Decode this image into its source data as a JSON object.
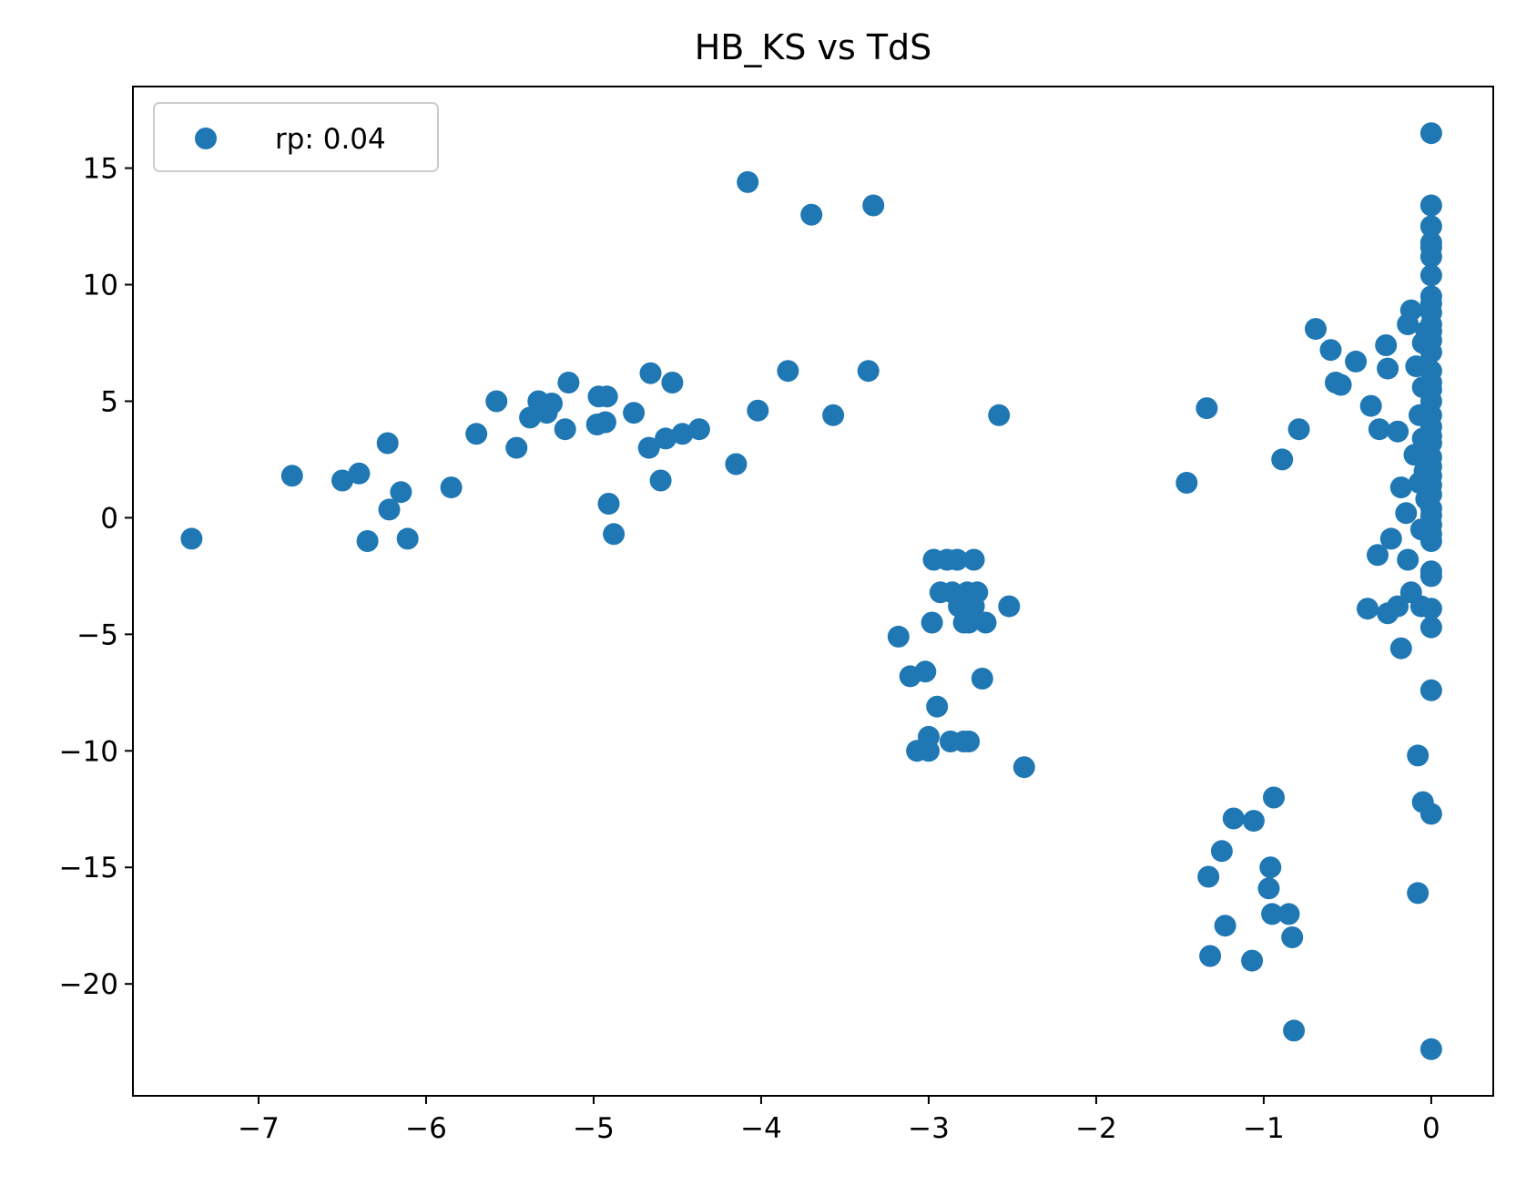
{
  "chart_data": {
    "type": "scatter",
    "title": "HB_KS vs TdS",
    "xlabel": "",
    "ylabel": "",
    "xlim": [
      -7.75,
      0.37
    ],
    "ylim": [
      -24.8,
      18.5
    ],
    "x_ticks": [
      -7,
      -6,
      -5,
      -4,
      -3,
      -2,
      -1,
      0
    ],
    "y_ticks": [
      -20,
      -15,
      -10,
      -5,
      0,
      5,
      10,
      15
    ],
    "x_tick_labels": [
      "−7",
      "−6",
      "−5",
      "−4",
      "−3",
      "−2",
      "−1",
      "0"
    ],
    "y_tick_labels": [
      "−20",
      "−15",
      "−10",
      "−5",
      "0",
      "5",
      "10",
      "15"
    ],
    "grid": false,
    "legend_position": "upper-left",
    "series": [
      {
        "name": "rp: 0.04",
        "color": "#1f77b4",
        "points": [
          [
            -7.4,
            -0.9
          ],
          [
            -6.8,
            1.8
          ],
          [
            -6.5,
            1.6
          ],
          [
            -6.4,
            1.9
          ],
          [
            -6.35,
            -1.0
          ],
          [
            -6.23,
            3.2
          ],
          [
            -6.22,
            0.35
          ],
          [
            -6.15,
            1.1
          ],
          [
            -6.11,
            -0.9
          ],
          [
            -5.85,
            1.3
          ],
          [
            -5.7,
            3.6
          ],
          [
            -5.58,
            5.0
          ],
          [
            -5.46,
            3.0
          ],
          [
            -5.38,
            4.3
          ],
          [
            -5.33,
            5.0
          ],
          [
            -5.28,
            4.5
          ],
          [
            -5.25,
            4.9
          ],
          [
            -5.17,
            3.8
          ],
          [
            -5.15,
            5.8
          ],
          [
            -4.98,
            4.0
          ],
          [
            -4.97,
            5.2
          ],
          [
            -4.93,
            4.1
          ],
          [
            -4.92,
            5.2
          ],
          [
            -4.91,
            0.6
          ],
          [
            -4.88,
            -0.7
          ],
          [
            -4.76,
            4.5
          ],
          [
            -4.67,
            3.0
          ],
          [
            -4.66,
            6.2
          ],
          [
            -4.6,
            1.6
          ],
          [
            -4.57,
            3.4
          ],
          [
            -4.53,
            5.8
          ],
          [
            -4.47,
            3.6
          ],
          [
            -4.37,
            3.8
          ],
          [
            -4.15,
            2.3
          ],
          [
            -4.08,
            14.4
          ],
          [
            -4.02,
            4.6
          ],
          [
            -3.84,
            6.3
          ],
          [
            -3.7,
            13.0
          ],
          [
            -3.57,
            4.4
          ],
          [
            -3.36,
            6.3
          ],
          [
            -3.33,
            13.4
          ],
          [
            -3.18,
            -5.1
          ],
          [
            -3.11,
            -6.8
          ],
          [
            -3.07,
            -10.0
          ],
          [
            -3.02,
            -6.6
          ],
          [
            -3.0,
            -9.4
          ],
          [
            -3.0,
            -10.0
          ],
          [
            -2.98,
            -4.5
          ],
          [
            -2.97,
            -1.8
          ],
          [
            -2.95,
            -8.1
          ],
          [
            -2.93,
            -3.2
          ],
          [
            -2.89,
            -1.8
          ],
          [
            -2.87,
            -9.6
          ],
          [
            -2.86,
            -3.2
          ],
          [
            -2.83,
            -1.8
          ],
          [
            -2.82,
            -3.8
          ],
          [
            -2.79,
            -4.5
          ],
          [
            -2.79,
            -9.6
          ],
          [
            -2.77,
            -3.2
          ],
          [
            -2.76,
            -9.6
          ],
          [
            -2.76,
            -4.5
          ],
          [
            -2.73,
            -3.8
          ],
          [
            -2.73,
            -1.8
          ],
          [
            -2.71,
            -3.2
          ],
          [
            -2.68,
            -6.9
          ],
          [
            -2.66,
            -4.5
          ],
          [
            -2.58,
            4.4
          ],
          [
            -2.52,
            -3.8
          ],
          [
            -2.43,
            -10.7
          ],
          [
            -1.46,
            1.5
          ],
          [
            -1.34,
            4.7
          ],
          [
            -1.33,
            -15.4
          ],
          [
            -1.32,
            -18.8
          ],
          [
            -1.25,
            -14.3
          ],
          [
            -1.23,
            -17.5
          ],
          [
            -1.18,
            -12.9
          ],
          [
            -1.07,
            -19.0
          ],
          [
            -1.06,
            -13.0
          ],
          [
            -0.97,
            -15.9
          ],
          [
            -0.96,
            -15.0
          ],
          [
            -0.95,
            -17.0
          ],
          [
            -0.94,
            -12.0
          ],
          [
            -0.89,
            2.5
          ],
          [
            -0.85,
            -17.0
          ],
          [
            -0.83,
            -18.0
          ],
          [
            -0.82,
            -22.0
          ],
          [
            -0.79,
            3.8
          ],
          [
            -0.69,
            8.1
          ],
          [
            -0.6,
            7.2
          ],
          [
            -0.57,
            5.8
          ],
          [
            -0.54,
            5.7
          ],
          [
            -0.45,
            6.7
          ],
          [
            -0.38,
            -3.9
          ],
          [
            -0.36,
            4.8
          ],
          [
            -0.32,
            -1.6
          ],
          [
            -0.31,
            3.8
          ],
          [
            -0.27,
            7.4
          ],
          [
            -0.26,
            6.4
          ],
          [
            -0.26,
            -4.1
          ],
          [
            -0.24,
            -0.9
          ],
          [
            -0.2,
            -3.8
          ],
          [
            -0.2,
            3.7
          ],
          [
            -0.18,
            -5.6
          ],
          [
            -0.18,
            1.3
          ],
          [
            -0.15,
            0.2
          ],
          [
            -0.14,
            -1.8
          ],
          [
            -0.14,
            8.3
          ],
          [
            -0.12,
            8.9
          ],
          [
            -0.12,
            -3.2
          ],
          [
            -0.1,
            2.7
          ],
          [
            -0.09,
            6.5
          ],
          [
            -0.08,
            -10.2
          ],
          [
            -0.08,
            -16.1
          ],
          [
            -0.07,
            1.5
          ],
          [
            -0.07,
            4.4
          ],
          [
            -0.06,
            -0.5
          ],
          [
            -0.06,
            -3.8
          ],
          [
            -0.05,
            -12.2
          ],
          [
            -0.05,
            7.5
          ],
          [
            -0.05,
            3.4
          ],
          [
            -0.05,
            5.6
          ],
          [
            -0.04,
            2.0
          ],
          [
            -0.03,
            0.8
          ],
          [
            -0.03,
            8.0
          ],
          [
            0.0,
            16.5
          ],
          [
            0.0,
            13.4
          ],
          [
            0.0,
            12.5
          ],
          [
            0.0,
            11.8
          ],
          [
            0.0,
            11.6
          ],
          [
            0.0,
            11.2
          ],
          [
            0.0,
            10.4
          ],
          [
            0.0,
            9.5
          ],
          [
            0.0,
            9.2
          ],
          [
            0.0,
            8.8
          ],
          [
            0.0,
            8.3
          ],
          [
            0.0,
            8.0
          ],
          [
            0.0,
            7.6
          ],
          [
            0.0,
            7.1
          ],
          [
            0.0,
            6.3
          ],
          [
            0.0,
            5.8
          ],
          [
            0.0,
            5.5
          ],
          [
            0.0,
            5.0
          ],
          [
            0.0,
            4.4
          ],
          [
            0.0,
            3.9
          ],
          [
            0.0,
            3.5
          ],
          [
            0.0,
            3.2
          ],
          [
            0.0,
            2.6
          ],
          [
            0.0,
            2.2
          ],
          [
            0.0,
            1.8
          ],
          [
            0.0,
            1.4
          ],
          [
            0.0,
            1.0
          ],
          [
            0.0,
            0.4
          ],
          [
            0.0,
            0.1
          ],
          [
            0.0,
            -0.3
          ],
          [
            0.0,
            -0.7
          ],
          [
            0.0,
            -1.0
          ],
          [
            0.0,
            -2.3
          ],
          [
            0.0,
            -2.5
          ],
          [
            0.0,
            -3.9
          ],
          [
            0.0,
            -4.7
          ],
          [
            0.0,
            -7.4
          ],
          [
            0.0,
            -12.7
          ],
          [
            0.0,
            -22.8
          ]
        ]
      }
    ]
  }
}
